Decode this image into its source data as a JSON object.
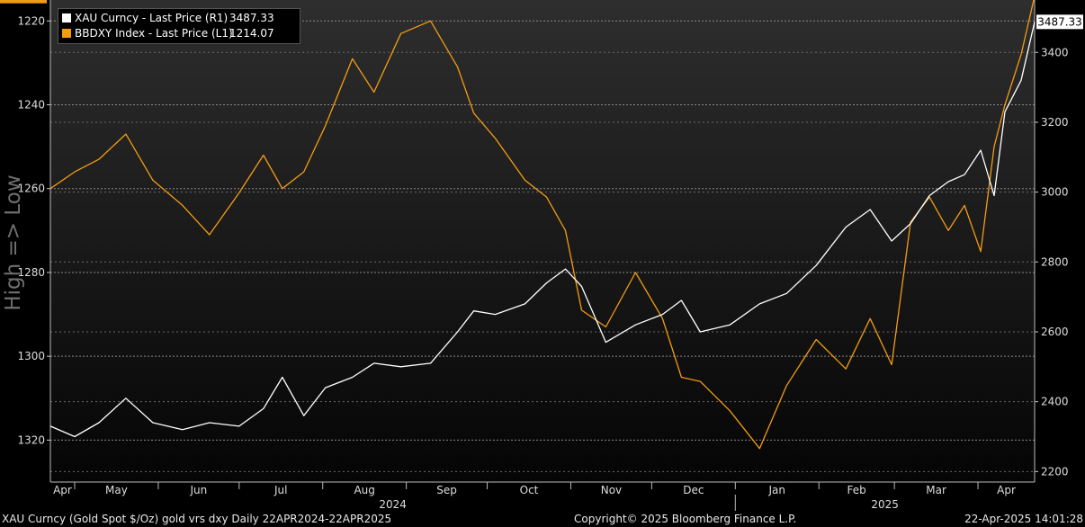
{
  "chart_data": {
    "type": "line",
    "x_range": [
      "2024-04-22",
      "2025-04-22"
    ],
    "month_labels": [
      "Apr",
      "May",
      "Jun",
      "Jul",
      "Aug",
      "Sep",
      "Oct",
      "Nov",
      "Dec",
      "Jan",
      "Feb",
      "Mar",
      "Apr"
    ],
    "year_labels": [
      "2024",
      "2025"
    ],
    "left_axis": {
      "ticks": [
        1220,
        1240,
        1260,
        1280,
        1300,
        1320
      ],
      "range": [
        1215,
        1330
      ],
      "inverted": true,
      "label": "High => Low",
      "last_value_tag": "1214.07"
    },
    "right_axis": {
      "ticks": [
        2200,
        2400,
        2600,
        2800,
        3000,
        3200,
        3400
      ],
      "range": [
        2170,
        3550
      ],
      "last_value_tag": "3487.33"
    },
    "grid": true,
    "legend_placement": "top-left",
    "series": [
      {
        "name": "XAU Curncy - Last Price (R1)",
        "last": "3487.33",
        "axis": "right",
        "color": "#ffffff",
        "x": [
          "2024-04-22",
          "2024-05-01",
          "2024-05-10",
          "2024-05-20",
          "2024-05-30",
          "2024-06-10",
          "2024-06-20",
          "2024-07-01",
          "2024-07-10",
          "2024-07-17",
          "2024-07-25",
          "2024-08-02",
          "2024-08-12",
          "2024-08-20",
          "2024-08-30",
          "2024-09-10",
          "2024-09-20",
          "2024-09-26",
          "2024-10-04",
          "2024-10-15",
          "2024-10-23",
          "2024-10-30",
          "2024-11-05",
          "2024-11-14",
          "2024-11-25",
          "2024-12-05",
          "2024-12-12",
          "2024-12-19",
          "2024-12-30",
          "2025-01-10",
          "2025-01-20",
          "2025-01-31",
          "2025-02-11",
          "2025-02-20",
          "2025-02-28",
          "2025-03-07",
          "2025-03-14",
          "2025-03-21",
          "2025-03-27",
          "2025-04-02",
          "2025-04-07",
          "2025-04-11",
          "2025-04-17",
          "2025-04-22"
        ],
        "values": [
          2330,
          2300,
          2340,
          2410,
          2340,
          2320,
          2340,
          2330,
          2380,
          2470,
          2360,
          2440,
          2470,
          2510,
          2500,
          2510,
          2600,
          2660,
          2650,
          2680,
          2740,
          2780,
          2730,
          2570,
          2620,
          2650,
          2690,
          2600,
          2620,
          2680,
          2710,
          2790,
          2900,
          2950,
          2860,
          2910,
          2990,
          3030,
          3050,
          3120,
          2990,
          3230,
          3320,
          3487.33
        ]
      },
      {
        "name": "BBDXY Index - Last Price (L1)",
        "last": "1214.07",
        "axis": "left",
        "color": "#f39c12",
        "x": [
          "2024-04-22",
          "2024-05-01",
          "2024-05-10",
          "2024-05-20",
          "2024-05-30",
          "2024-06-10",
          "2024-06-20",
          "2024-07-01",
          "2024-07-10",
          "2024-07-17",
          "2024-07-25",
          "2024-08-02",
          "2024-08-12",
          "2024-08-20",
          "2024-08-30",
          "2024-09-10",
          "2024-09-20",
          "2024-09-26",
          "2024-10-04",
          "2024-10-15",
          "2024-10-23",
          "2024-10-30",
          "2024-11-05",
          "2024-11-14",
          "2024-11-25",
          "2024-12-05",
          "2024-12-12",
          "2024-12-19",
          "2024-12-30",
          "2025-01-10",
          "2025-01-20",
          "2025-01-31",
          "2025-02-11",
          "2025-02-20",
          "2025-02-28",
          "2025-03-07",
          "2025-03-14",
          "2025-03-21",
          "2025-03-27",
          "2025-04-02",
          "2025-04-07",
          "2025-04-11",
          "2025-04-17",
          "2025-04-22"
        ],
        "values": [
          1260,
          1256,
          1253,
          1247,
          1258,
          1264,
          1271,
          1261,
          1252,
          1260,
          1256,
          1245,
          1229,
          1237,
          1223,
          1220,
          1231,
          1242,
          1248,
          1258,
          1262,
          1270,
          1289,
          1293,
          1280,
          1291,
          1305,
          1306,
          1313,
          1322,
          1307,
          1296,
          1303,
          1291,
          1302,
          1268,
          1262,
          1270,
          1264,
          1275,
          1250,
          1240,
          1228,
          1214.07
        ]
      }
    ]
  },
  "footer": {
    "left": "XAU Curncy (Gold Spot  $/Oz) gold vrs dxy  Daily 22APR2024-22APR2025",
    "center": "Copyright© 2025 Bloomberg Finance L.P.",
    "right": "22-Apr-2025 14:01:28"
  }
}
